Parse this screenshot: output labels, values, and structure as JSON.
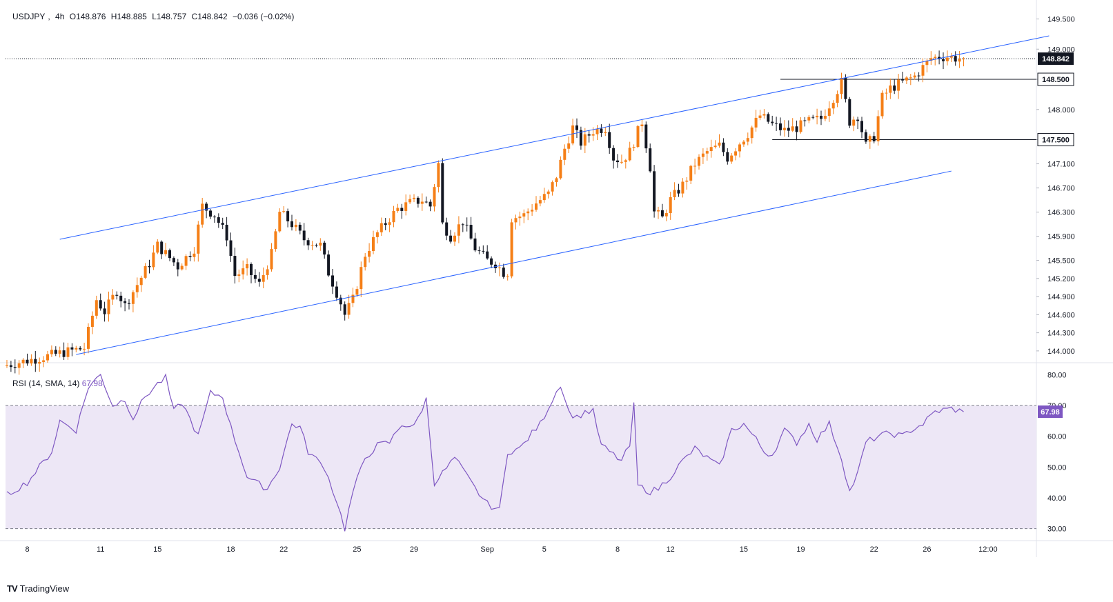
{
  "symbol_header": {
    "symbol": "USDJPY",
    "interval": "4h",
    "open": "O148.876",
    "high": "H148.885",
    "low": "L148.757",
    "close": "C148.842",
    "change": "−0.036 (−0.02%)"
  },
  "rsi_header": {
    "label": "RSI (14, SMA, 14)",
    "value": "67.98"
  },
  "branding": {
    "name": "TradingView"
  },
  "colors": {
    "up": "#f57f17",
    "down": "#131722",
    "channel": "#2962ff",
    "rsi": "#7e57c2",
    "rsi_band": "#ede7f6",
    "grid": "#e0e3eb",
    "axis_text": "#131722"
  },
  "chart_data": [
    {
      "type": "candlestick",
      "title": "USDJPY, 4h",
      "price_axis_ticks": [
        149.5,
        149.0,
        148.5,
        148.0,
        147.5,
        147.1,
        146.7,
        146.3,
        145.9,
        145.5,
        145.2,
        144.9,
        144.6,
        144.3,
        144.0
      ],
      "price_axis_labels": [
        "149.500",
        "149.000",
        "148.000",
        "147.100",
        "146.700",
        "146.300",
        "145.900",
        "145.500",
        "145.200",
        "144.900",
        "144.600",
        "144.300",
        "144.000"
      ],
      "ylim": [
        143.85,
        149.7
      ],
      "x_axis_labels": [
        "8",
        "11",
        "15",
        "18",
        "22",
        "25",
        "29",
        "Sep",
        "5",
        "8",
        "12",
        "15",
        "19",
        "22",
        "26",
        "12:00"
      ],
      "x_axis_label_index": [
        5,
        23,
        37,
        55,
        68,
        86,
        100,
        118,
        132,
        150,
        163,
        181,
        195,
        213,
        226,
        241
      ],
      "candle_count": 236,
      "last_price": {
        "value": 148.842,
        "label": "148.842"
      },
      "horizontal_levels": [
        {
          "value": 148.5,
          "label": "148.500",
          "from_index": 190
        },
        {
          "value": 147.5,
          "label": "147.500",
          "from_index": 188
        }
      ],
      "channel_upper": [
        [
          13,
          145.85
        ],
        [
          256,
          149.22
        ]
      ],
      "channel_lower": [
        [
          17,
          143.94
        ],
        [
          232,
          146.98
        ]
      ],
      "ohlc_anchors": [
        [
          0,
          143.75
        ],
        [
          20,
          144.05
        ],
        [
          23,
          144.85
        ],
        [
          25,
          144.65
        ],
        [
          28,
          145.0
        ],
        [
          30,
          144.75
        ],
        [
          36,
          145.45
        ],
        [
          38,
          145.75
        ],
        [
          43,
          145.4
        ],
        [
          47,
          145.7
        ],
        [
          49,
          146.4
        ],
        [
          52,
          146.25
        ],
        [
          55,
          145.9
        ],
        [
          57,
          145.25
        ],
        [
          60,
          145.35
        ],
        [
          63,
          145.1
        ],
        [
          66,
          145.6
        ],
        [
          68,
          146.3
        ],
        [
          71,
          146.1
        ],
        [
          74,
          145.85
        ],
        [
          78,
          145.75
        ],
        [
          80,
          145.3
        ],
        [
          83,
          144.8
        ],
        [
          84,
          144.6
        ],
        [
          86,
          144.85
        ],
        [
          89,
          145.6
        ],
        [
          92,
          145.95
        ],
        [
          95,
          146.2
        ],
        [
          97,
          146.35
        ],
        [
          100,
          146.45
        ],
        [
          103,
          146.5
        ],
        [
          105,
          146.4
        ],
        [
          107,
          147.1
        ],
        [
          108,
          146.1
        ],
        [
          110,
          145.9
        ],
        [
          113,
          146.15
        ],
        [
          116,
          145.7
        ],
        [
          119,
          145.5
        ],
        [
          121,
          145.45
        ],
        [
          123,
          145.3
        ],
        [
          124,
          145.3
        ],
        [
          125,
          146.2
        ],
        [
          128,
          146.25
        ],
        [
          131,
          146.45
        ],
        [
          134,
          146.6
        ],
        [
          136,
          146.9
        ],
        [
          138,
          147.35
        ],
        [
          140,
          147.7
        ],
        [
          142,
          147.45
        ],
        [
          145,
          147.65
        ],
        [
          148,
          147.7
        ],
        [
          150,
          147.2
        ],
        [
          152,
          147.15
        ],
        [
          154,
          147.3
        ],
        [
          157,
          147.8
        ],
        [
          159,
          147.05
        ],
        [
          160,
          146.3
        ],
        [
          162,
          146.2
        ],
        [
          164,
          146.5
        ],
        [
          167,
          146.75
        ],
        [
          170,
          147.1
        ],
        [
          173,
          147.3
        ],
        [
          176,
          147.4
        ],
        [
          178,
          147.2
        ],
        [
          181,
          147.45
        ],
        [
          183,
          147.6
        ],
        [
          186,
          147.9
        ],
        [
          189,
          147.75
        ],
        [
          192,
          147.65
        ],
        [
          195,
          147.7
        ],
        [
          198,
          147.8
        ],
        [
          201,
          147.85
        ],
        [
          204,
          148.2
        ],
        [
          206,
          148.45
        ],
        [
          208,
          147.8
        ],
        [
          210,
          147.9
        ],
        [
          212,
          147.4
        ],
        [
          214,
          147.55
        ],
        [
          216,
          148.2
        ],
        [
          218,
          148.35
        ],
        [
          221,
          148.45
        ],
        [
          224,
          148.55
        ],
        [
          226,
          148.7
        ],
        [
          228,
          148.85
        ],
        [
          230,
          148.87
        ],
        [
          232,
          148.876
        ],
        [
          235,
          148.842
        ]
      ]
    },
    {
      "type": "line",
      "title": "RSI (14, SMA, 14)",
      "ylim": [
        27,
        83
      ],
      "y_ticks": [
        80,
        70,
        60,
        50,
        40,
        30
      ],
      "y_tick_labels": [
        "80.00",
        "70.00",
        "60.00",
        "50.00",
        "40.00",
        "30.00"
      ],
      "band": [
        30,
        70
      ],
      "last": 67.98,
      "anchors": [
        [
          0,
          41
        ],
        [
          5,
          45
        ],
        [
          11,
          55
        ],
        [
          13,
          65
        ],
        [
          17,
          62
        ],
        [
          20,
          76
        ],
        [
          23,
          80
        ],
        [
          26,
          70
        ],
        [
          29,
          72
        ],
        [
          31,
          66
        ],
        [
          34,
          73
        ],
        [
          37,
          77
        ],
        [
          39,
          79
        ],
        [
          41,
          68
        ],
        [
          43,
          71
        ],
        [
          47,
          60
        ],
        [
          50,
          74
        ],
        [
          53,
          73
        ],
        [
          55,
          63
        ],
        [
          57,
          55
        ],
        [
          59,
          47
        ],
        [
          61,
          45
        ],
        [
          64,
          43
        ],
        [
          67,
          50
        ],
        [
          70,
          64
        ],
        [
          72,
          63
        ],
        [
          74,
          55
        ],
        [
          78,
          50
        ],
        [
          81,
          39
        ],
        [
          83,
          30
        ],
        [
          85,
          42
        ],
        [
          88,
          53
        ],
        [
          91,
          57
        ],
        [
          94,
          58
        ],
        [
          97,
          64
        ],
        [
          100,
          63
        ],
        [
          103,
          72
        ],
        [
          105,
          45
        ],
        [
          107,
          48
        ],
        [
          110,
          53
        ],
        [
          112,
          49
        ],
        [
          115,
          43
        ],
        [
          118,
          38
        ],
        [
          121,
          36
        ],
        [
          123,
          55
        ],
        [
          126,
          56
        ],
        [
          129,
          61
        ],
        [
          131,
          64
        ],
        [
          134,
          72
        ],
        [
          136,
          77
        ],
        [
          138,
          68
        ],
        [
          140,
          66
        ],
        [
          142,
          68
        ],
        [
          144,
          68
        ],
        [
          146,
          57
        ],
        [
          148,
          55
        ],
        [
          151,
          52
        ],
        [
          153,
          57
        ],
        [
          154,
          70
        ],
        [
          155,
          44
        ],
        [
          158,
          42
        ],
        [
          160,
          43
        ],
        [
          163,
          47
        ],
        [
          166,
          52
        ],
        [
          169,
          56
        ],
        [
          172,
          53
        ],
        [
          175,
          50
        ],
        [
          178,
          62
        ],
        [
          181,
          64
        ],
        [
          184,
          59
        ],
        [
          186,
          55
        ],
        [
          188,
          54
        ],
        [
          191,
          62
        ],
        [
          194,
          58
        ],
        [
          197,
          64
        ],
        [
          199,
          59
        ],
        [
          202,
          64
        ],
        [
          205,
          53
        ],
        [
          207,
          42
        ],
        [
          209,
          48
        ],
        [
          211,
          58
        ],
        [
          214,
          60
        ],
        [
          217,
          61
        ],
        [
          220,
          60
        ],
        [
          222,
          62
        ],
        [
          225,
          64
        ],
        [
          228,
          68
        ],
        [
          232,
          69
        ],
        [
          235,
          67.98
        ]
      ]
    }
  ]
}
